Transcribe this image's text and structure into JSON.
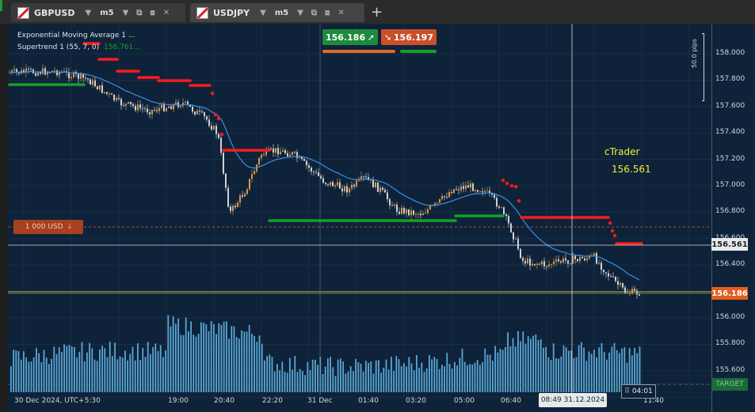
{
  "tabs": [
    {
      "symbol": "GBPUSD",
      "timeframe": "m5"
    },
    {
      "symbol": "USDJPY",
      "timeframe": "m5"
    }
  ],
  "legend": {
    "ema": "Exponential Moving Average 1 ...",
    "supertrend": "Supertrend 1 (55, 7, 0)",
    "supertrend_value": "156.761..."
  },
  "trade": {
    "sell_price": "156.186",
    "buy_price": "156.197"
  },
  "price_axis": {
    "labels": [
      "158.000",
      "157.800",
      "157.600",
      "157.400",
      "157.200",
      "157.000",
      "156.800",
      "156.600",
      "156.400",
      "156.200",
      "156.000",
      "155.800",
      "155.600"
    ],
    "current_bid": "156.186",
    "crosshair_price": "156.561",
    "target_label": "TARGET",
    "pips_label": "50.0 pips"
  },
  "overlay": {
    "brand": "cTrader",
    "brand_price": "156.561",
    "order_size": "1 000 USD"
  },
  "time_axis": {
    "start": "30 Dec 2024, UTC+5:30",
    "ticks": [
      "19:00",
      "20:40",
      "22:20",
      "31 Dec",
      "01:40",
      "03:20",
      "05:00",
      "06:40",
      "11:40"
    ],
    "crosshair_time": "08:49 31.12.2024",
    "countdown": "04:01"
  },
  "colors": {
    "up": "#f2a24a",
    "down": "#e6e6e6",
    "ema": "#3a8ee6",
    "st_red": "#ff1a1a",
    "st_green": "#16a02a",
    "sell": "#1d8a3e",
    "buy": "#c9502a"
  }
}
